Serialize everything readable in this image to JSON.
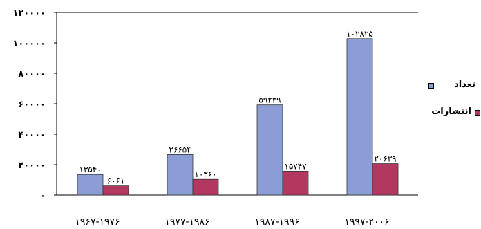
{
  "chart_data": {
    "type": "bar",
    "title": "",
    "xlabel": "",
    "ylabel": "",
    "ylim": [
      0,
      120000
    ],
    "yticks": [
      0,
      20000,
      40000,
      60000,
      80000,
      100000,
      120000
    ],
    "ytick_labels": [
      "۰",
      "۲۰۰۰۰",
      "۴۰۰۰۰",
      "۶۰۰۰۰",
      "۸۰۰۰۰",
      "۱۰۰۰۰۰",
      "۱۲۰۰۰۰"
    ],
    "categories": [
      "۱۹۶۷-۱۹۷۶",
      "۱۹۷۷-۱۹۸۶",
      "۱۹۸۷-۱۹۹۶",
      "۱۹۹۷-۲۰۰۶"
    ],
    "grid": false,
    "legend_position": "right",
    "series": [
      {
        "name": "تعداد",
        "color": "#8b9dd4",
        "values": [
          13540,
          26654,
          59239,
          102825
        ],
        "labels": [
          "۱۳۵۴۰",
          "۲۶۶۵۴",
          "۵۹۲۳۹",
          "۱۰۲۸۲۵"
        ]
      },
      {
        "name": "انتشارات",
        "color": "#b3385f",
        "values": [
          6061,
          10360,
          15747,
          20639
        ],
        "labels": [
          "۶۰۶۱",
          "۱۰۳۶۰",
          "۱۵۷۴۷",
          "۲۰۶۳۹"
        ]
      }
    ]
  }
}
